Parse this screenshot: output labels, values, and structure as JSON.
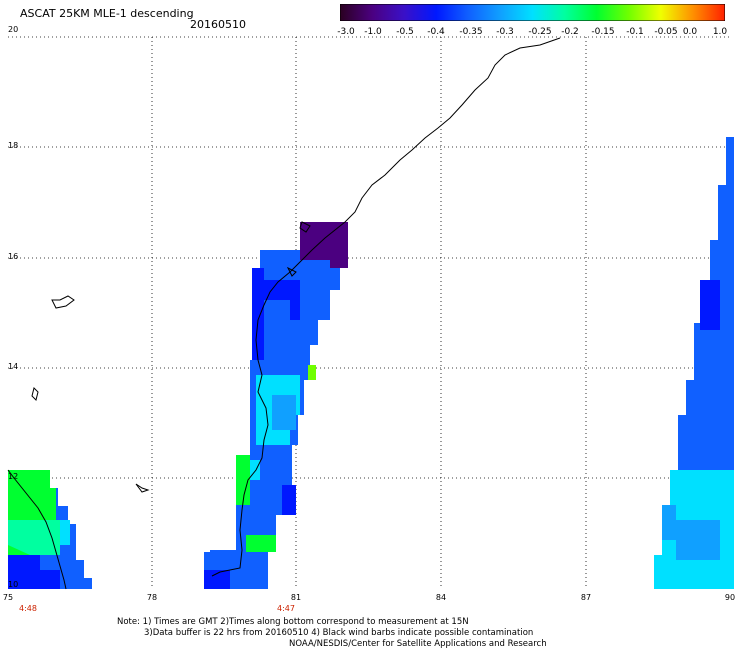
{
  "title": "ASCAT 25KM MLE-1 descending",
  "date": "20160510",
  "colorbar": {
    "labels": [
      "-3.0",
      "-1.0",
      "-0.5",
      "-0.4",
      "-0.35",
      "-0.3",
      "-0.25",
      "-0.2",
      "-0.15",
      "-0.1",
      "-0.05",
      "0.0",
      "1.0"
    ],
    "colors": [
      "#2a0020",
      "#4b0080",
      "#3a10c8",
      "#0018ff",
      "#1060ff",
      "#10a0ff",
      "#00e0ff",
      "#00ffa0",
      "#00ff30",
      "#70ff00",
      "#f0ff00",
      "#ff9000",
      "#ff2000"
    ]
  },
  "axes": {
    "lat_labels": [
      "20",
      "18",
      "16",
      "14",
      "12",
      "10"
    ],
    "lon_labels": [
      "75",
      "78",
      "81",
      "84",
      "87",
      "90"
    ],
    "lat_range": [
      10,
      20
    ],
    "lon_range": [
      75,
      90
    ]
  },
  "pass_times": [
    "4:48",
    "4:47"
  ],
  "notes": {
    "line1": "Note: 1) Times are GMT 2)Times along bottom correspond to measurement at 15N",
    "line2": "3)Data buffer is 22 hrs from 20160510 4) Black wind barbs indicate possible contamination",
    "line3": "NOAA/NESDIS/Center for Satellite Applications and Research"
  },
  "colors": {
    "swath_blue": "#1060ff",
    "swath_deep": "#0018ff",
    "swath_cyan": "#00e0ff",
    "swath_green": "#00ff30",
    "swath_purple": "#4b0080",
    "time_label": "#cc2200"
  }
}
